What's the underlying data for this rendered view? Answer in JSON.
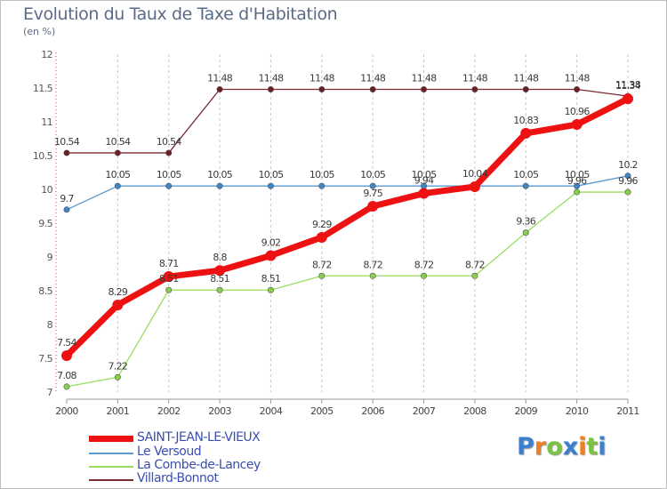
{
  "chart_data": {
    "type": "line",
    "title": "Evolution du Taux de Taxe d'Habitation",
    "subtitle": "(en %)",
    "x": [
      "2000",
      "2001",
      "2002",
      "2003",
      "2004",
      "2005",
      "2006",
      "2007",
      "2008",
      "2009",
      "2010",
      "2011"
    ],
    "ylim": [
      7,
      12
    ],
    "yticks": [
      7,
      7.5,
      8,
      8.5,
      9,
      9.5,
      10,
      10.5,
      11,
      11.5,
      12
    ],
    "grid": "vertical dashed",
    "series": [
      {
        "name": "Villard-Bonnot",
        "color": "#7a2b33",
        "values": [
          10.54,
          10.54,
          10.54,
          11.48,
          11.48,
          11.48,
          11.48,
          11.48,
          11.48,
          11.48,
          11.48,
          11.38
        ]
      },
      {
        "name": "Le Versoud",
        "color": "#5a9bd2",
        "values": [
          9.7,
          10.05,
          10.05,
          10.05,
          10.05,
          10.05,
          10.05,
          10.05,
          10.05,
          10.05,
          10.05,
          10.2
        ]
      },
      {
        "name": "La Combe-de-Lancey",
        "color": "#98de5e",
        "values": [
          7.08,
          7.22,
          8.51,
          8.51,
          8.51,
          8.72,
          8.72,
          8.72,
          8.72,
          9.36,
          9.96,
          9.96
        ]
      },
      {
        "name": "SAINT-JEAN-LE-VIEUX",
        "color": "#ee1111",
        "values": [
          7.54,
          8.29,
          8.71,
          8.8,
          9.02,
          9.29,
          9.75,
          9.94,
          10.04,
          10.83,
          10.96,
          11.34
        ]
      }
    ],
    "labels": {
      "Villard-Bonnot": [
        "10.54",
        "10.54",
        "10.54",
        "11.48",
        "11.48",
        "11.48",
        "11.48",
        "11.48",
        "11.48",
        "11.48",
        "11.48",
        "11.38"
      ],
      "Le Versoud": [
        "9.7",
        "10.05",
        "10.05",
        "10.05",
        "10.05",
        "10.05",
        "10.05",
        "10.05",
        "",
        "10.05",
        "10.05",
        "10.2"
      ],
      "La Combe-de-Lancey": [
        "7.08",
        "7.22",
        "8.51",
        "8.51",
        "8.51",
        "8.72",
        "8.72",
        "8.72",
        "8.72",
        "9.36",
        "9.96",
        "9.96"
      ],
      "SAINT-JEAN-LE-VIEUX": [
        "7.54",
        "8.29",
        "8.71",
        "8.8",
        "9.02",
        "9.29",
        "9.75",
        "9.94",
        "10.04",
        "10.83",
        "10.96",
        "11.34"
      ]
    },
    "legend": [
      "SAINT-JEAN-LE-VIEUX",
      "Le Versoud",
      "La Combe-de-Lancey",
      "Villard-Bonnot"
    ],
    "legend_position": "bottom-left"
  },
  "brand": {
    "letters": [
      "P",
      "r",
      "o",
      "x",
      "i",
      "t",
      "i"
    ],
    "colors": [
      "#3a7fd0",
      "#ef7f22",
      "#7cc242",
      "#3a7fd0",
      "#ef7f22",
      "#7cc242",
      "#3a7fd0"
    ]
  }
}
